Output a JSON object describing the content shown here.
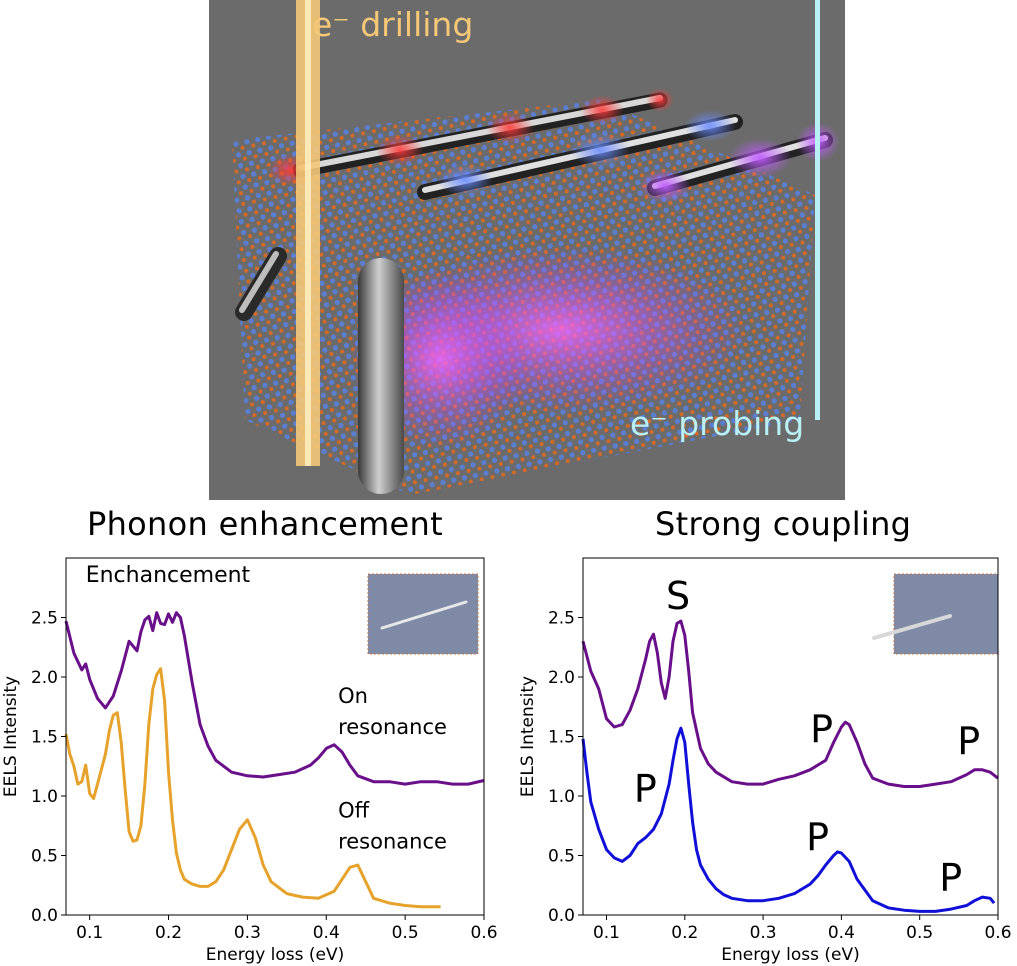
{
  "illustration": {
    "drilling_label": "e⁻ drilling",
    "probing_label": "e⁻ probing",
    "background": "#6b6b6b",
    "drilling_color": "#f5c878",
    "probing_color": "#b8f0f5"
  },
  "titles": {
    "left": "Phonon enhancement",
    "right": "Strong coupling"
  },
  "chart_data": [
    {
      "type": "line",
      "xlabel": "Energy loss (eV)",
      "ylabel": "EELS Intensity",
      "xlim": [
        0.07,
        0.6
      ],
      "ylim": [
        0,
        3.0
      ],
      "xticks": [
        0.1,
        0.2,
        0.3,
        0.4,
        0.5,
        0.6
      ],
      "yticks": [
        0.0,
        0.5,
        1.0,
        1.5,
        2.0,
        2.5
      ],
      "grid": false,
      "annotations": [
        {
          "text": "Enchancement",
          "x": 0.095,
          "y": 2.8
        },
        {
          "text": "On",
          "x": 0.415,
          "y": 1.78
        },
        {
          "text": "resonance",
          "x": 0.415,
          "y": 1.52
        },
        {
          "text": "Off",
          "x": 0.415,
          "y": 0.82
        },
        {
          "text": "resonance",
          "x": 0.415,
          "y": 0.56
        }
      ],
      "series": [
        {
          "color": "#6a0f8a",
          "x": [
            0.07,
            0.08,
            0.09,
            0.095,
            0.1,
            0.11,
            0.12,
            0.13,
            0.14,
            0.15,
            0.16,
            0.165,
            0.17,
            0.175,
            0.18,
            0.185,
            0.19,
            0.195,
            0.2,
            0.205,
            0.21,
            0.215,
            0.22,
            0.23,
            0.24,
            0.25,
            0.26,
            0.28,
            0.3,
            0.32,
            0.34,
            0.36,
            0.38,
            0.39,
            0.4,
            0.41,
            0.42,
            0.43,
            0.44,
            0.46,
            0.48,
            0.5,
            0.52,
            0.54,
            0.56,
            0.58,
            0.6
          ],
          "y": [
            2.47,
            2.2,
            2.06,
            2.11,
            1.98,
            1.82,
            1.74,
            1.84,
            2.05,
            2.3,
            2.22,
            2.38,
            2.48,
            2.51,
            2.39,
            2.54,
            2.45,
            2.44,
            2.53,
            2.46,
            2.54,
            2.5,
            2.35,
            1.95,
            1.6,
            1.42,
            1.3,
            1.2,
            1.17,
            1.16,
            1.18,
            1.2,
            1.26,
            1.32,
            1.4,
            1.43,
            1.37,
            1.26,
            1.17,
            1.12,
            1.12,
            1.1,
            1.12,
            1.12,
            1.1,
            1.1,
            1.13
          ]
        },
        {
          "color": "#e6a22a",
          "x": [
            0.07,
            0.075,
            0.08,
            0.085,
            0.09,
            0.095,
            0.1,
            0.105,
            0.11,
            0.12,
            0.125,
            0.13,
            0.135,
            0.14,
            0.145,
            0.15,
            0.155,
            0.16,
            0.165,
            0.17,
            0.175,
            0.18,
            0.185,
            0.19,
            0.195,
            0.2,
            0.205,
            0.21,
            0.215,
            0.22,
            0.23,
            0.24,
            0.25,
            0.26,
            0.27,
            0.28,
            0.29,
            0.3,
            0.31,
            0.32,
            0.33,
            0.35,
            0.37,
            0.39,
            0.41,
            0.42,
            0.43,
            0.44,
            0.45,
            0.46,
            0.48,
            0.5,
            0.52,
            0.545
          ],
          "y": [
            1.52,
            1.35,
            1.25,
            1.1,
            1.12,
            1.26,
            1.02,
            0.98,
            1.1,
            1.35,
            1.55,
            1.68,
            1.7,
            1.45,
            1.05,
            0.7,
            0.62,
            0.63,
            0.75,
            1.1,
            1.6,
            1.9,
            2.02,
            2.07,
            1.8,
            1.2,
            0.8,
            0.52,
            0.38,
            0.3,
            0.26,
            0.24,
            0.24,
            0.28,
            0.38,
            0.55,
            0.72,
            0.8,
            0.65,
            0.42,
            0.28,
            0.18,
            0.15,
            0.14,
            0.2,
            0.3,
            0.4,
            0.42,
            0.28,
            0.14,
            0.1,
            0.08,
            0.07,
            0.07
          ]
        }
      ]
    },
    {
      "type": "line",
      "xlabel": "Energy loss (eV)",
      "ylabel": "EELS Intensity",
      "xlim": [
        0.07,
        0.6
      ],
      "ylim": [
        0,
        3.0
      ],
      "xticks": [
        0.1,
        0.2,
        0.3,
        0.4,
        0.5,
        0.6
      ],
      "yticks": [
        0.0,
        0.5,
        1.0,
        1.5,
        2.0,
        2.5
      ],
      "grid": false,
      "annotations": [
        {
          "text": "S",
          "x": 0.176,
          "y": 2.57
        },
        {
          "text": "P",
          "x": 0.135,
          "y": 0.95
        },
        {
          "text": "P",
          "x": 0.36,
          "y": 1.45
        },
        {
          "text": "P",
          "x": 0.355,
          "y": 0.54
        },
        {
          "text": "P",
          "x": 0.548,
          "y": 1.35
        },
        {
          "text": "P",
          "x": 0.525,
          "y": 0.2
        }
      ],
      "series": [
        {
          "color": "#6a0f8a",
          "x": [
            0.07,
            0.08,
            0.09,
            0.1,
            0.11,
            0.12,
            0.13,
            0.14,
            0.15,
            0.155,
            0.16,
            0.165,
            0.17,
            0.175,
            0.18,
            0.185,
            0.19,
            0.195,
            0.2,
            0.205,
            0.21,
            0.22,
            0.23,
            0.24,
            0.26,
            0.28,
            0.3,
            0.32,
            0.34,
            0.36,
            0.38,
            0.39,
            0.4,
            0.405,
            0.41,
            0.42,
            0.43,
            0.44,
            0.46,
            0.48,
            0.5,
            0.52,
            0.54,
            0.56,
            0.57,
            0.58,
            0.59,
            0.6
          ],
          "y": [
            2.3,
            2.05,
            1.9,
            1.65,
            1.58,
            1.6,
            1.72,
            1.9,
            2.15,
            2.3,
            2.36,
            2.2,
            1.95,
            1.82,
            2.0,
            2.3,
            2.45,
            2.47,
            2.35,
            2.05,
            1.7,
            1.4,
            1.27,
            1.2,
            1.12,
            1.1,
            1.1,
            1.14,
            1.17,
            1.22,
            1.3,
            1.45,
            1.58,
            1.62,
            1.6,
            1.45,
            1.27,
            1.15,
            1.1,
            1.08,
            1.08,
            1.1,
            1.12,
            1.18,
            1.22,
            1.22,
            1.2,
            1.15
          ]
        },
        {
          "color": "#1010d8",
          "x": [
            0.07,
            0.075,
            0.08,
            0.09,
            0.1,
            0.11,
            0.12,
            0.13,
            0.14,
            0.15,
            0.16,
            0.17,
            0.18,
            0.185,
            0.19,
            0.195,
            0.2,
            0.205,
            0.21,
            0.215,
            0.22,
            0.23,
            0.24,
            0.25,
            0.26,
            0.28,
            0.3,
            0.32,
            0.34,
            0.36,
            0.37,
            0.38,
            0.39,
            0.395,
            0.4,
            0.41,
            0.42,
            0.44,
            0.46,
            0.48,
            0.5,
            0.52,
            0.54,
            0.56,
            0.57,
            0.58,
            0.59,
            0.595
          ],
          "y": [
            1.48,
            1.2,
            0.95,
            0.72,
            0.55,
            0.48,
            0.45,
            0.5,
            0.6,
            0.65,
            0.72,
            0.85,
            1.1,
            1.3,
            1.48,
            1.57,
            1.45,
            1.1,
            0.78,
            0.55,
            0.42,
            0.3,
            0.22,
            0.17,
            0.14,
            0.12,
            0.12,
            0.14,
            0.18,
            0.26,
            0.33,
            0.42,
            0.5,
            0.53,
            0.52,
            0.45,
            0.3,
            0.12,
            0.06,
            0.04,
            0.03,
            0.03,
            0.05,
            0.08,
            0.12,
            0.15,
            0.14,
            0.1
          ]
        }
      ]
    }
  ]
}
